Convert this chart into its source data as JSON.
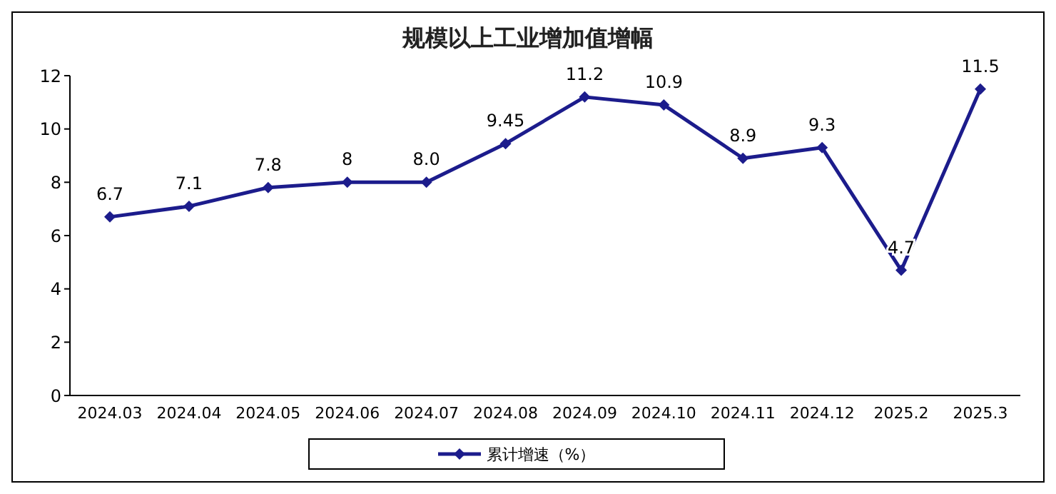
{
  "chart_data": {
    "type": "line",
    "title": "规模以上工业增加值增幅",
    "categories": [
      "2024.03",
      "2024.04",
      "2024.05",
      "2024.06",
      "2024.07",
      "2024.08",
      "2024.09",
      "2024.10",
      "2024.11",
      "2024.12",
      "2025.2",
      "2025.3"
    ],
    "series": [
      {
        "name": "累计增速（%）",
        "color": "#1c1c8c",
        "values": [
          6.7,
          7.1,
          7.8,
          8,
          8.0,
          9.45,
          11.2,
          10.9,
          8.9,
          9.3,
          4.7,
          11.5
        ],
        "value_labels": [
          "6.7",
          "7.1",
          "7.8",
          "8",
          "8.0",
          "9.45",
          "11.2",
          "10.9",
          "8.9",
          "9.3",
          "4.7",
          "11.5"
        ]
      }
    ],
    "ylim": [
      0,
      12
    ],
    "yticks": [
      0,
      2,
      4,
      6,
      8,
      10,
      12
    ],
    "grid": false,
    "legend": "bottom",
    "marker": "diamond",
    "line_style": "solid"
  }
}
